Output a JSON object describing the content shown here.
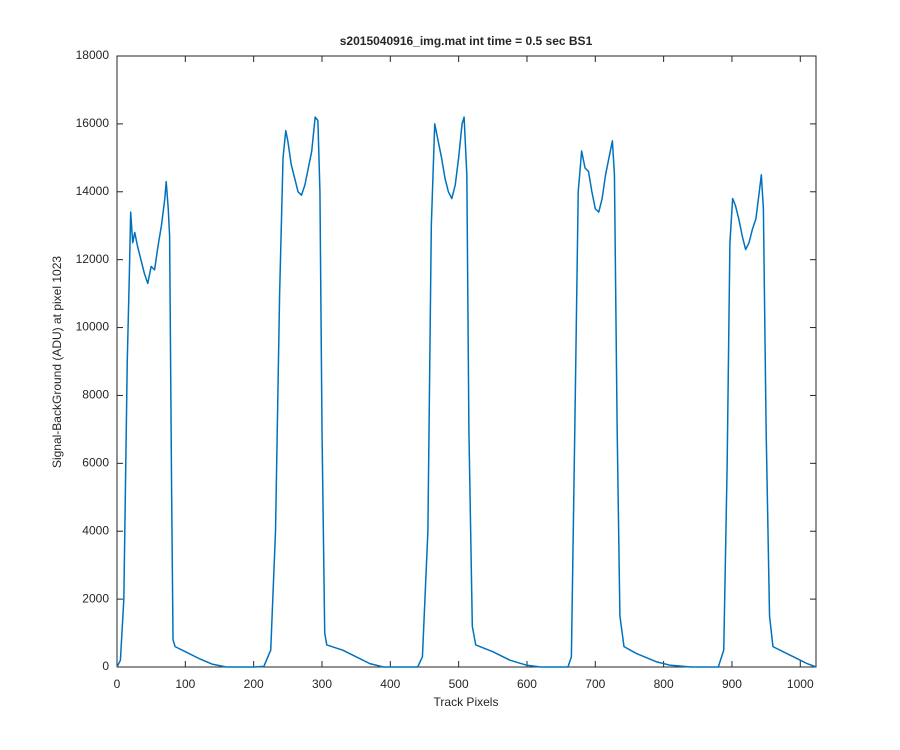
{
  "chart_data": {
    "type": "line",
    "title": "s2015040916_img.mat int time = 0.5 sec   BS1",
    "x_label": "Track Pixels",
    "y_label": "Signal-BackGround (ADU) at pixel 1023",
    "xlim": [
      0,
      1023
    ],
    "ylim": [
      0,
      18000
    ],
    "xticks": [
      0,
      100,
      200,
      300,
      400,
      500,
      600,
      700,
      800,
      900,
      1000
    ],
    "yticks": [
      0,
      2000,
      4000,
      6000,
      8000,
      10000,
      12000,
      14000,
      16000,
      18000
    ],
    "grid": false,
    "x": [
      0,
      5,
      10,
      15,
      18,
      20,
      23,
      26,
      30,
      35,
      40,
      45,
      50,
      55,
      60,
      65,
      70,
      72,
      75,
      77,
      80,
      82,
      85,
      100,
      120,
      140,
      160,
      200,
      215,
      225,
      232,
      238,
      243,
      247,
      250,
      255,
      260,
      265,
      270,
      275,
      280,
      285,
      290,
      294,
      297,
      300,
      304,
      307,
      330,
      350,
      370,
      390,
      440,
      447,
      455,
      460,
      465,
      470,
      475,
      480,
      485,
      490,
      495,
      500,
      505,
      508,
      512,
      515,
      520,
      525,
      550,
      575,
      600,
      620,
      660,
      665,
      670,
      675,
      680,
      685,
      690,
      695,
      700,
      705,
      710,
      715,
      720,
      725,
      728,
      732,
      736,
      742,
      760,
      790,
      810,
      840,
      880,
      888,
      893,
      897,
      901,
      905,
      910,
      915,
      920,
      925,
      930,
      935,
      940,
      943,
      946,
      950,
      955,
      960,
      980,
      1000,
      1010,
      1023
    ],
    "series": [
      {
        "name": "BS1",
        "color": "#0072bd",
        "values": [
          0,
          200,
          2000,
          9000,
          11500,
          13400,
          12500,
          12800,
          12400,
          12000,
          11600,
          11300,
          11800,
          11700,
          12400,
          13000,
          13800,
          14300,
          13500,
          12700,
          5000,
          800,
          600,
          450,
          250,
          80,
          0,
          0,
          20,
          500,
          4000,
          11000,
          15000,
          15800,
          15500,
          14800,
          14400,
          14000,
          13900,
          14200,
          14700,
          15200,
          16200,
          16100,
          14000,
          7000,
          1000,
          650,
          500,
          300,
          100,
          0,
          0,
          300,
          4000,
          13000,
          16000,
          15500,
          15000,
          14400,
          14000,
          13800,
          14200,
          15000,
          16000,
          16200,
          14500,
          7000,
          1200,
          650,
          450,
          200,
          50,
          0,
          0,
          300,
          7000,
          14000,
          15200,
          14700,
          14600,
          14000,
          13500,
          13400,
          13800,
          14500,
          15000,
          15500,
          14500,
          7000,
          1500,
          600,
          400,
          150,
          50,
          0,
          0,
          500,
          6000,
          12500,
          13800,
          13600,
          13200,
          12700,
          12300,
          12500,
          12900,
          13200,
          14000,
          14500,
          13500,
          7000,
          1500,
          600,
          400,
          200,
          100,
          0
        ]
      }
    ]
  }
}
